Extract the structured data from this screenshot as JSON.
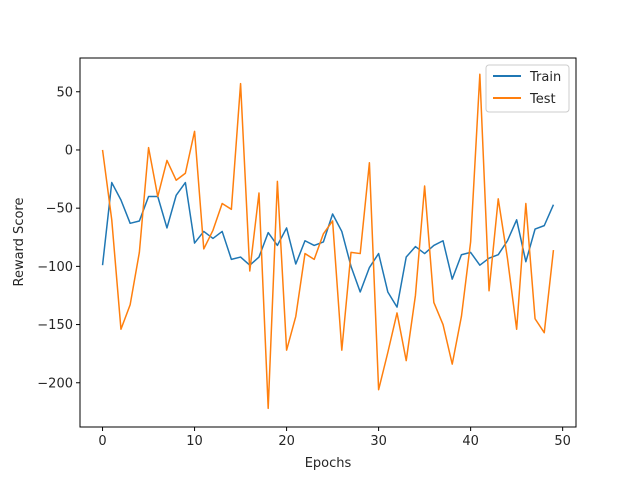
{
  "chart_data": {
    "type": "line",
    "title": "",
    "xlabel": "Epochs",
    "ylabel": "Reward Score",
    "xlim": [
      -2.45,
      51.45
    ],
    "ylim": [
      -238,
      79
    ],
    "xticks": [
      0,
      10,
      20,
      30,
      40,
      50
    ],
    "yticks": [
      50,
      0,
      -50,
      -100,
      -150,
      -200
    ],
    "ytick_labels": [
      "50",
      "0",
      "−50",
      "−100",
      "−150",
      "−200"
    ],
    "grid": false,
    "legend_position": "top-right",
    "x": [
      0,
      1,
      2,
      3,
      4,
      5,
      6,
      7,
      8,
      9,
      10,
      11,
      12,
      13,
      14,
      15,
      16,
      17,
      18,
      19,
      20,
      21,
      22,
      23,
      24,
      25,
      26,
      27,
      28,
      29,
      30,
      31,
      32,
      33,
      34,
      35,
      36,
      37,
      38,
      39,
      40,
      41,
      42,
      43,
      44,
      45,
      46,
      47,
      48,
      49
    ],
    "series": [
      {
        "name": "Train",
        "color": "#1f77b4",
        "values": [
          -99,
          -28,
          -43,
          -63,
          -61,
          -40,
          -40,
          -67,
          -39,
          -28,
          -80,
          -70,
          -76,
          -70,
          -94,
          -92,
          -99,
          -92,
          -71,
          -82,
          -67,
          -98,
          -78,
          -82,
          -79,
          -55,
          -70,
          -100,
          -122,
          -101,
          -89,
          -122,
          -135,
          -92,
          -83,
          -89,
          -82,
          -78,
          -111,
          -90,
          -88,
          -99,
          -93,
          -90,
          -78,
          -60,
          -96,
          -68,
          -65,
          -47
        ]
      },
      {
        "name": "Test",
        "color": "#ff7f0e",
        "values": [
          0,
          -60,
          -154,
          -133,
          -88,
          2,
          -40,
          -9,
          -26,
          -20,
          16,
          -85,
          -69,
          -46,
          -51,
          57,
          -104,
          -37,
          -222,
          -27,
          -172,
          -143,
          -89,
          -94,
          -72,
          -61,
          -172,
          -88,
          -89,
          -11,
          -206,
          -174,
          -140,
          -181,
          -125,
          -31,
          -131,
          -150,
          -184,
          -143,
          -79,
          65,
          -121,
          -42,
          -93,
          -154,
          -46,
          -145,
          -157,
          -86
        ]
      }
    ]
  }
}
